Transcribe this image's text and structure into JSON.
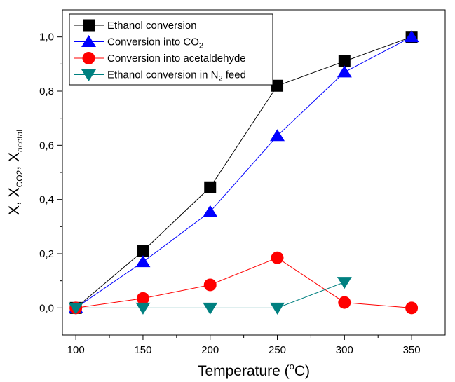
{
  "chart_data": {
    "type": "line",
    "xlabel": {
      "base": "Temperature (",
      "sup": "o",
      "tail": "C)"
    },
    "ylabel": {
      "p1": "X, X",
      "sub1": "CO2",
      "p2": ", X",
      "sub2": "acetal"
    },
    "xlim": [
      90,
      375
    ],
    "ylim": [
      -0.1,
      1.1
    ],
    "x_ticks": [
      100,
      150,
      200,
      250,
      300,
      350
    ],
    "x_tick_labels": [
      "100",
      "150",
      "200",
      "250",
      "300",
      "350"
    ],
    "y_ticks": [
      0.0,
      0.2,
      0.4,
      0.6,
      0.8,
      1.0
    ],
    "y_tick_labels": [
      "0,0",
      "0,2",
      "0,4",
      "0,6",
      "0,8",
      "1,0"
    ],
    "grid": false,
    "legend_position": "top-left",
    "series": [
      {
        "name": "Ethanol conversion",
        "label_parts": {
          "main": "Ethanol conversion",
          "sub": "",
          "tail": ""
        },
        "color": "#000000",
        "marker": "square",
        "x": [
          100,
          150,
          200,
          250,
          300,
          350
        ],
        "y": [
          0.0,
          0.21,
          0.445,
          0.82,
          0.91,
          1.0
        ]
      },
      {
        "name": "Conversion into CO2",
        "label_parts": {
          "main": "Conversion into CO",
          "sub": "2",
          "tail": ""
        },
        "color": "#0000ff",
        "marker": "triangle-up",
        "x": [
          100,
          150,
          200,
          250,
          300,
          350
        ],
        "y": [
          0.0,
          0.17,
          0.355,
          0.635,
          0.87,
          1.0
        ]
      },
      {
        "name": "Conversion into acetaldehyde",
        "label_parts": {
          "main": "Conversion into acetaldehyde",
          "sub": "",
          "tail": ""
        },
        "color": "#ff0000",
        "marker": "circle",
        "x": [
          100,
          150,
          200,
          250,
          300,
          350
        ],
        "y": [
          0.0,
          0.035,
          0.085,
          0.185,
          0.02,
          0.0
        ]
      },
      {
        "name": "Ethanol conversion in N2 feed",
        "label_parts": {
          "main": "Ethanol conversion in N",
          "sub": "2",
          "tail": " feed"
        },
        "color": "#008080",
        "marker": "triangle-down",
        "x": [
          100,
          150,
          200,
          250,
          300
        ],
        "y": [
          0.0,
          0.0,
          0.0,
          0.0,
          0.095
        ]
      }
    ]
  }
}
